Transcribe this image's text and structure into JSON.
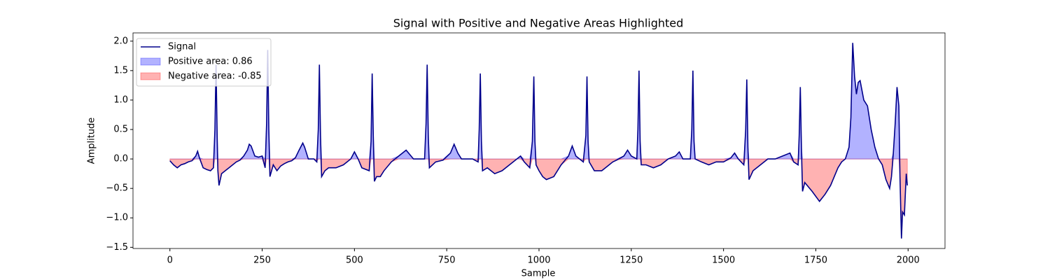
{
  "chart_data": {
    "type": "line",
    "title": "Signal with Positive and Negative Areas Highlighted",
    "xlabel": "Sample",
    "ylabel": "Amplitude",
    "xlim": [
      -100,
      2100
    ],
    "ylim": [
      -1.52,
      2.14
    ],
    "xticks": [
      0,
      250,
      500,
      750,
      1000,
      1250,
      1500,
      1750,
      2000
    ],
    "yticks": [
      {
        "value": -1.5,
        "label": "−1.5"
      },
      {
        "value": -1.0,
        "label": "−1.0"
      },
      {
        "value": -0.5,
        "label": "−0.5"
      },
      {
        "value": 0,
        "label": "0.0"
      },
      {
        "value": 0.5,
        "label": "0.5"
      },
      {
        "value": 1.0,
        "label": "1.0"
      },
      {
        "value": 1.5,
        "label": "1.5"
      },
      {
        "value": 2.0,
        "label": "2.0"
      }
    ],
    "legend": "upper left",
    "fills": [
      {
        "name": "Positive area: 0.86",
        "color": "#0000ff",
        "sign": "positive"
      },
      {
        "name": "Negative area: -0.85",
        "color": "#ff0000",
        "sign": "negative"
      }
    ],
    "x": [
      0,
      10,
      20,
      30,
      40,
      50,
      60,
      70,
      75,
      80,
      90,
      100,
      110,
      118,
      122,
      125,
      128,
      130,
      133,
      140,
      150,
      160,
      170,
      180,
      190,
      200,
      210,
      215,
      220,
      230,
      240,
      250,
      258,
      262,
      265,
      268,
      271,
      280,
      290,
      300,
      310,
      320,
      330,
      340,
      350,
      360,
      365,
      375,
      390,
      398,
      402,
      405,
      408,
      411,
      420,
      430,
      450,
      470,
      490,
      500,
      510,
      520,
      540,
      545,
      548,
      551,
      554,
      560,
      570,
      580,
      600,
      620,
      640,
      660,
      680,
      690,
      694,
      697,
      700,
      703,
      720,
      740,
      760,
      770,
      780,
      790,
      820,
      835,
      838,
      841,
      844,
      847,
      860,
      880,
      900,
      920,
      940,
      950,
      960,
      975,
      982,
      986,
      989,
      992,
      1000,
      1010,
      1020,
      1040,
      1060,
      1080,
      1090,
      1100,
      1110,
      1120,
      1127,
      1130,
      1133,
      1136,
      1150,
      1170,
      1180,
      1190,
      1200,
      1210,
      1230,
      1240,
      1250,
      1265,
      1268,
      1271,
      1274,
      1277,
      1290,
      1310,
      1330,
      1350,
      1370,
      1380,
      1390,
      1410,
      1414,
      1417,
      1420,
      1423,
      1440,
      1460,
      1480,
      1500,
      1520,
      1530,
      1540,
      1555,
      1560,
      1563,
      1566,
      1569,
      1580,
      1600,
      1620,
      1640,
      1660,
      1680,
      1690,
      1702,
      1705,
      1708,
      1711,
      1714,
      1720,
      1740,
      1760,
      1775,
      1790,
      1800,
      1810,
      1820,
      1830,
      1840,
      1845,
      1850,
      1855,
      1860,
      1865,
      1870,
      1880,
      1890,
      1900,
      1910,
      1920,
      1930,
      1940,
      1950,
      1955,
      1960,
      1965,
      1970,
      1975,
      1978,
      1982,
      1985,
      1990,
      1995,
      1998
    ],
    "series": [
      {
        "name": "Signal",
        "color": "#00008b",
        "values": [
          -0.03,
          -0.1,
          -0.15,
          -0.1,
          -0.08,
          -0.05,
          -0.03,
          0.05,
          0.13,
          0.02,
          -0.15,
          -0.18,
          -0.2,
          -0.15,
          0.5,
          1.6,
          0.4,
          -0.2,
          -0.45,
          -0.25,
          -0.2,
          -0.15,
          -0.1,
          -0.05,
          -0.02,
          0.05,
          0.15,
          0.25,
          0.22,
          0.05,
          0.03,
          0.05,
          -0.15,
          0.6,
          1.85,
          0.5,
          -0.3,
          -0.1,
          -0.2,
          -0.12,
          -0.08,
          -0.05,
          -0.03,
          0.02,
          0.15,
          0.27,
          0.2,
          0.0,
          0.0,
          -0.05,
          0.5,
          1.6,
          0.4,
          -0.3,
          -0.2,
          -0.15,
          -0.15,
          -0.1,
          0.0,
          0.12,
          0.0,
          -0.15,
          -0.2,
          0.3,
          1.45,
          0.4,
          -0.38,
          -0.3,
          -0.3,
          -0.2,
          -0.05,
          0.05,
          0.15,
          0.0,
          0.0,
          0.0,
          0.6,
          1.6,
          0.4,
          -0.15,
          -0.05,
          -0.02,
          0.1,
          0.25,
          0.1,
          0.0,
          0.0,
          -0.05,
          0.5,
          1.45,
          0.3,
          -0.2,
          -0.15,
          -0.25,
          -0.2,
          -0.1,
          0.0,
          0.05,
          -0.05,
          -0.15,
          0.3,
          1.4,
          0.3,
          -0.1,
          -0.2,
          -0.3,
          -0.35,
          -0.3,
          -0.1,
          0.05,
          0.22,
          0.05,
          0.0,
          -0.05,
          0.4,
          1.4,
          0.3,
          -0.05,
          -0.2,
          -0.2,
          -0.15,
          -0.1,
          -0.05,
          -0.02,
          0.05,
          0.15,
          0.05,
          0.0,
          0.5,
          1.5,
          0.3,
          -0.1,
          -0.1,
          -0.15,
          -0.1,
          0.0,
          0.05,
          0.12,
          0.0,
          0.0,
          0.5,
          1.5,
          0.3,
          0.0,
          -0.05,
          -0.1,
          -0.05,
          -0.05,
          0.02,
          0.1,
          0.0,
          -0.1,
          0.5,
          1.35,
          0.2,
          -0.35,
          -0.2,
          -0.1,
          0.0,
          0.0,
          0.05,
          0.1,
          -0.05,
          -0.1,
          0.4,
          1.22,
          0.2,
          -0.55,
          -0.4,
          -0.55,
          -0.72,
          -0.6,
          -0.45,
          -0.3,
          -0.15,
          -0.05,
          0.0,
          0.2,
          0.7,
          1.97,
          1.4,
          1.1,
          1.3,
          1.33,
          1.0,
          0.9,
          0.5,
          0.2,
          0.0,
          -0.1,
          -0.35,
          -0.5,
          -0.3,
          0.1,
          0.6,
          1.22,
          0.9,
          -0.3,
          -1.35,
          -0.9,
          -0.95,
          -0.25,
          -0.45
        ]
      }
    ]
  }
}
